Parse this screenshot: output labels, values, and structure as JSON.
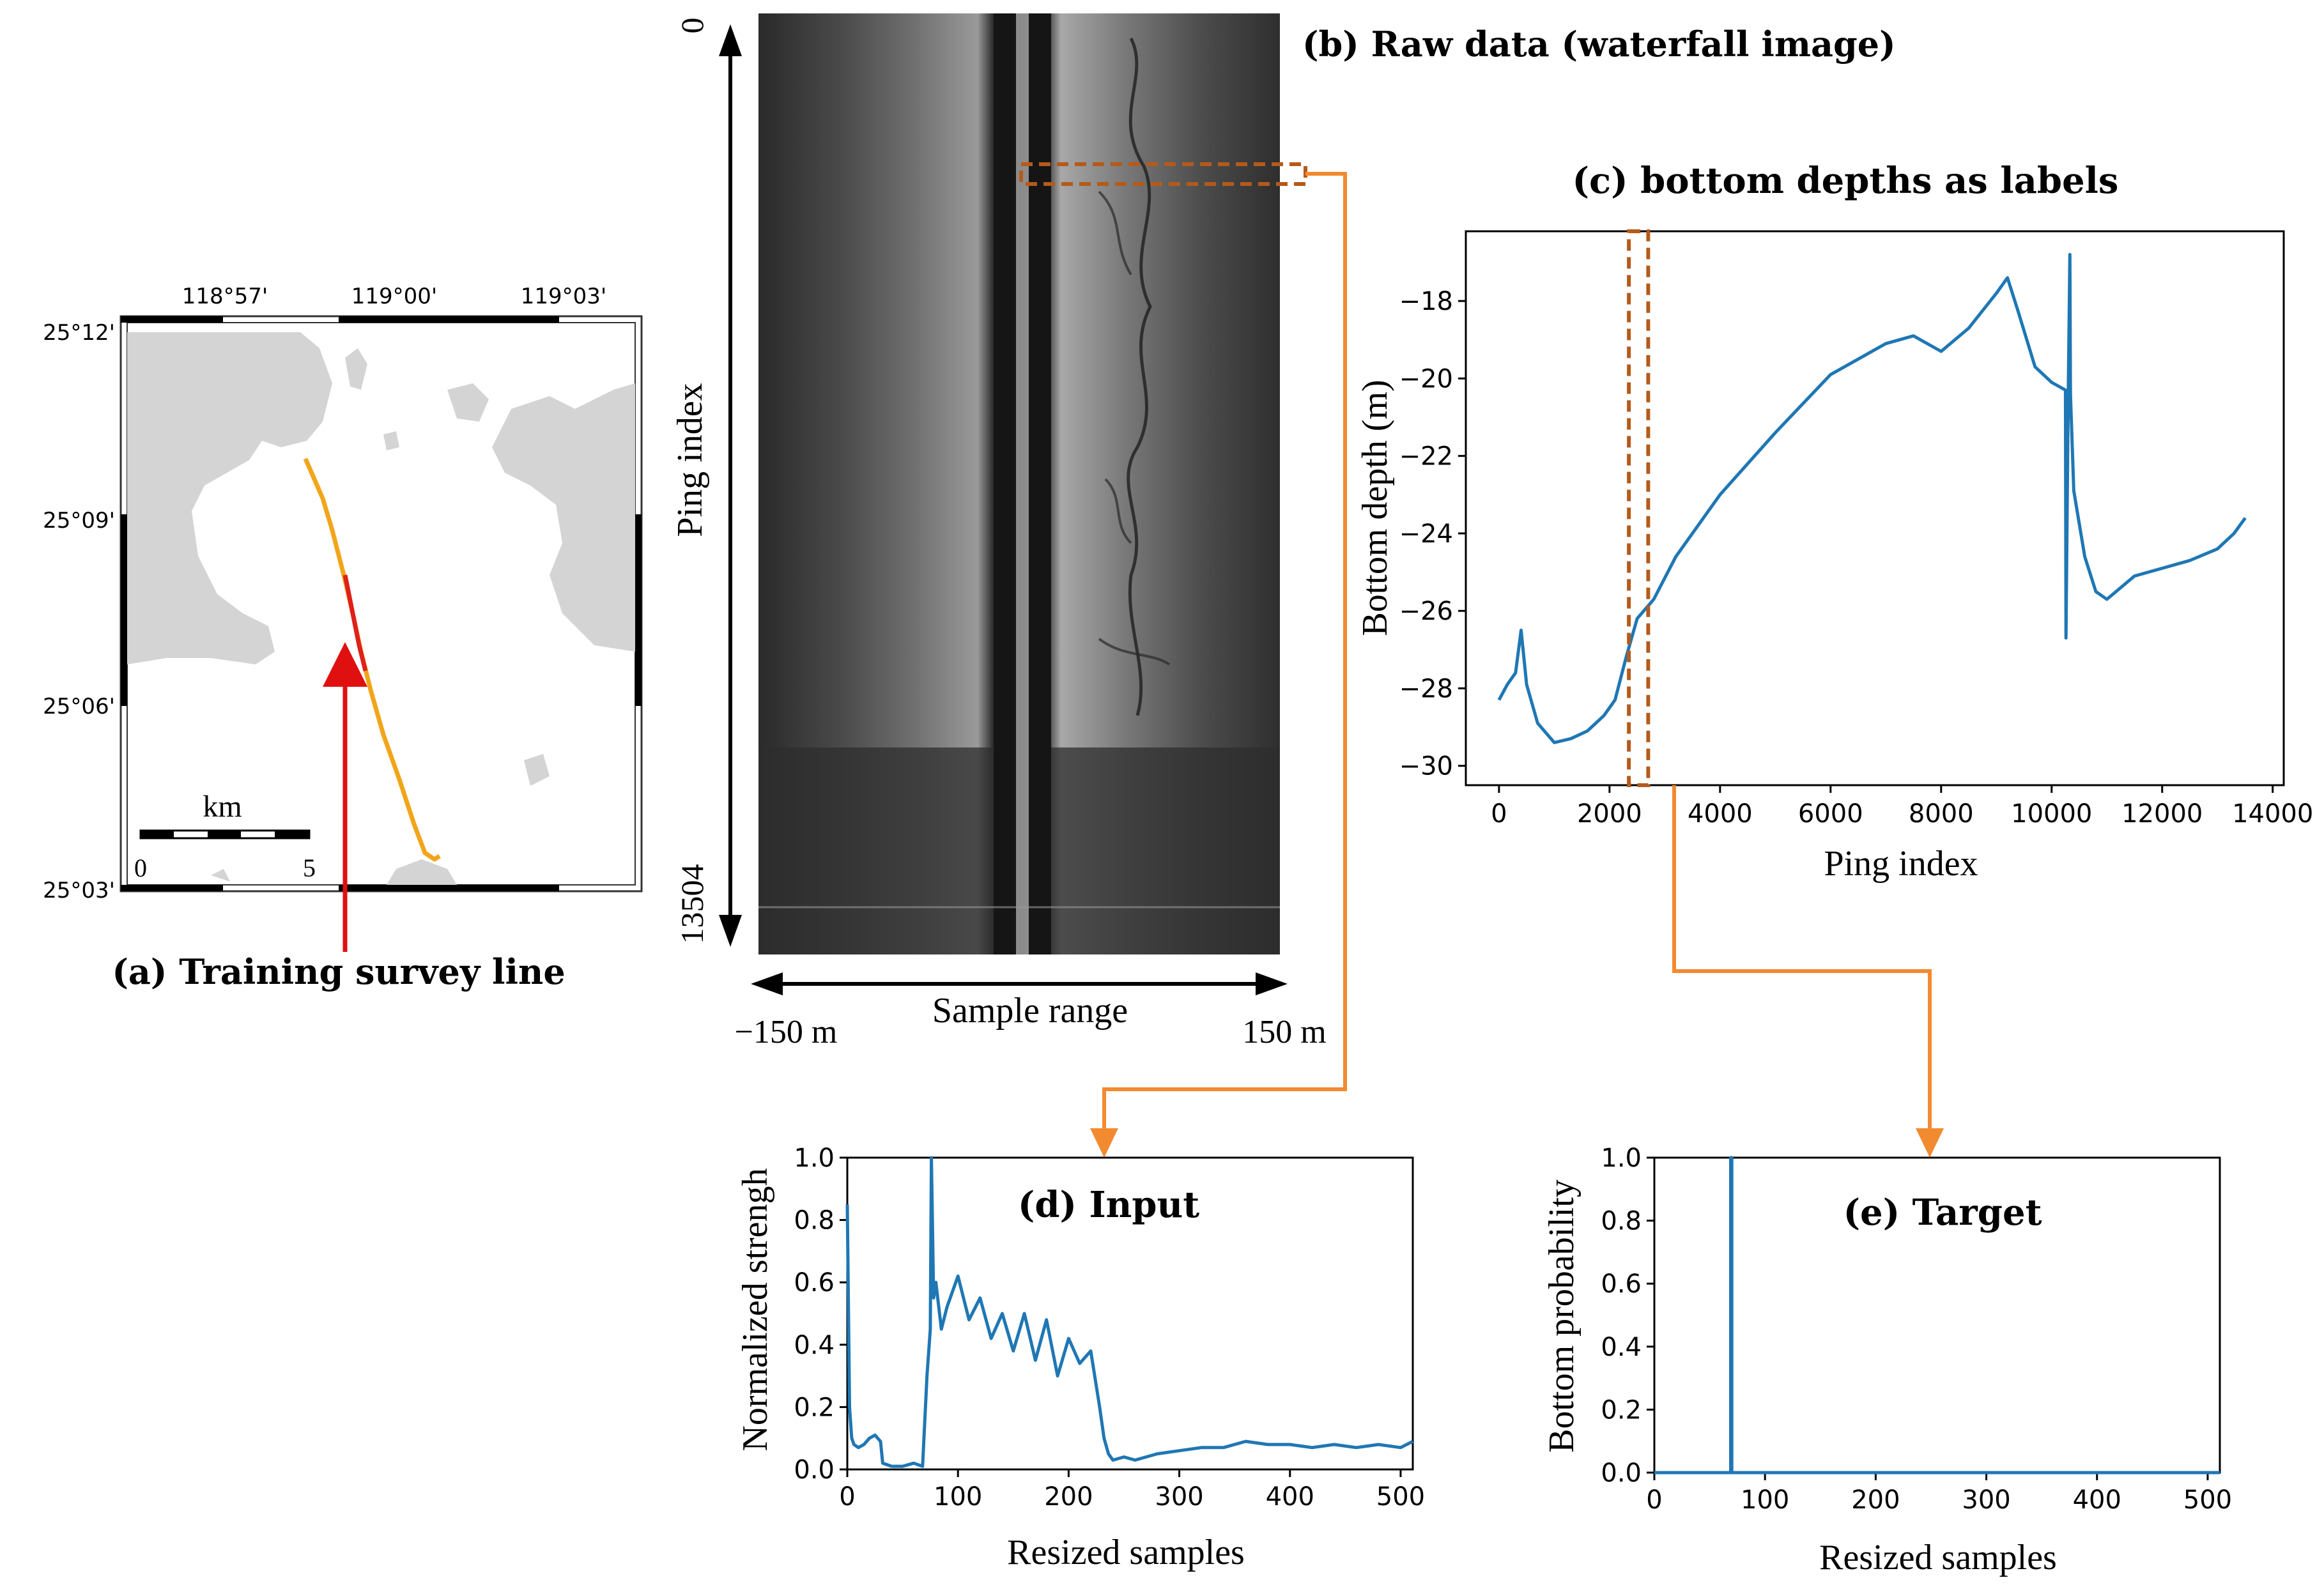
{
  "panel_a": {
    "caption": "(a) Training survey line",
    "lon_ticks": [
      "118°57'",
      "119°00'",
      "119°03'"
    ],
    "lat_ticks": [
      "25°12'",
      "25°09'",
      "25°06'",
      "25°03'"
    ],
    "scale_unit": "km",
    "scale_min": "0",
    "scale_max": "5",
    "colors": {
      "land": "#d4d4d4",
      "track": "#f2a51a",
      "track_segment": "#e0201b",
      "arrow": "#e01010"
    }
  },
  "panel_b": {
    "caption": "(b) Raw data (waterfall image)",
    "y_label": "Ping index",
    "y_top": "0",
    "y_bottom": "13504",
    "x_label": "Sample range",
    "x_left": "−150 m",
    "x_right": "150 m",
    "colors": {
      "highlight": "#b55a1a",
      "connector": "#f28a30"
    }
  },
  "chart_data": [
    {
      "id": "c",
      "type": "line",
      "title": "(c) bottom depths as labels",
      "xlabel": "Ping index",
      "ylabel": "Bottom depth (m)",
      "xlim": [
        -600,
        14200
      ],
      "ylim": [
        -30.5,
        -16.2
      ],
      "xticks": [
        0,
        2000,
        4000,
        6000,
        8000,
        10000,
        12000,
        14000
      ],
      "xticklabels": [
        "0",
        "2000",
        "4000",
        "6000",
        "8000",
        "10000",
        "12000",
        "14000"
      ],
      "yticks": [
        -30,
        -28,
        -26,
        -24,
        -22,
        -20,
        -18
      ],
      "yticklabels": [
        "−30",
        "−28",
        "−26",
        "−24",
        "−22",
        "−20",
        "−18"
      ],
      "highlight_x": [
        2350,
        2700
      ],
      "color": "#1f77b4",
      "series": [
        {
          "x": [
            0,
            150,
            300,
            400,
            500,
            700,
            1000,
            1300,
            1600,
            1900,
            2100,
            2300,
            2500,
            2800,
            3200,
            4000,
            5000,
            6000,
            7000,
            7500,
            8000,
            8500,
            9000,
            9200,
            9400,
            9700,
            10000,
            10250,
            10260,
            10300,
            10330,
            10340,
            10400,
            10600,
            10800,
            11000,
            11500,
            12000,
            12500,
            13000,
            13300,
            13504
          ],
          "y": [
            -28.3,
            -27.9,
            -27.6,
            -26.5,
            -27.9,
            -28.9,
            -29.4,
            -29.3,
            -29.1,
            -28.7,
            -28.3,
            -27.2,
            -26.2,
            -25.7,
            -24.6,
            -23.0,
            -21.4,
            -19.9,
            -19.1,
            -18.9,
            -19.3,
            -18.7,
            -17.8,
            -17.4,
            -18.3,
            -19.7,
            -20.1,
            -20.3,
            -26.7,
            -20.5,
            -16.8,
            -20.4,
            -22.9,
            -24.6,
            -25.5,
            -25.7,
            -25.1,
            -24.9,
            -24.7,
            -24.4,
            -24.0,
            -23.6
          ]
        }
      ]
    },
    {
      "id": "d",
      "type": "line",
      "title": "(d) Input",
      "xlabel": "Resized samples",
      "ylabel": "Normalized strengh",
      "xlim": [
        0,
        511
      ],
      "ylim": [
        0,
        1.0
      ],
      "xticks": [
        0,
        100,
        200,
        300,
        400,
        500
      ],
      "xticklabels": [
        "0",
        "100",
        "200",
        "300",
        "400",
        "500"
      ],
      "yticks": [
        0,
        0.2,
        0.4,
        0.6,
        0.8,
        1.0
      ],
      "yticklabels": [
        "0.0",
        "0.2",
        "0.4",
        "0.6",
        "0.8",
        "1.0"
      ],
      "color": "#1f77b4",
      "series": [
        {
          "x": [
            0,
            2,
            4,
            6,
            10,
            15,
            20,
            25,
            30,
            32,
            40,
            50,
            60,
            68,
            72,
            75,
            76,
            78,
            80,
            85,
            90,
            100,
            110,
            120,
            130,
            140,
            150,
            160,
            170,
            180,
            190,
            200,
            210,
            220,
            228,
            232,
            236,
            240,
            250,
            260,
            280,
            300,
            320,
            340,
            360,
            380,
            400,
            420,
            440,
            460,
            480,
            500,
            511
          ],
          "y": [
            0.85,
            0.2,
            0.1,
            0.08,
            0.07,
            0.08,
            0.1,
            0.11,
            0.09,
            0.02,
            0.01,
            0.01,
            0.02,
            0.01,
            0.3,
            0.45,
            1.0,
            0.55,
            0.6,
            0.45,
            0.52,
            0.62,
            0.48,
            0.55,
            0.42,
            0.5,
            0.38,
            0.5,
            0.35,
            0.48,
            0.3,
            0.42,
            0.34,
            0.38,
            0.2,
            0.1,
            0.05,
            0.03,
            0.04,
            0.03,
            0.05,
            0.06,
            0.07,
            0.07,
            0.09,
            0.08,
            0.08,
            0.07,
            0.08,
            0.07,
            0.08,
            0.07,
            0.09
          ]
        }
      ]
    },
    {
      "id": "e",
      "type": "line",
      "title": "(e) Target",
      "xlabel": "Resized samples",
      "ylabel": "Bottom probability",
      "xlim": [
        0,
        511
      ],
      "ylim": [
        0,
        1.0
      ],
      "xticks": [
        0,
        100,
        200,
        300,
        400,
        500
      ],
      "xticklabels": [
        "0",
        "100",
        "200",
        "300",
        "400",
        "500"
      ],
      "yticks": [
        0,
        0.2,
        0.4,
        0.6,
        0.8,
        1.0
      ],
      "yticklabels": [
        "0.0",
        "0.2",
        "0.4",
        "0.6",
        "0.8",
        "1.0"
      ],
      "color": "#1f77b4",
      "series": [
        {
          "x": [
            0,
            69,
            69,
            70,
            70,
            511
          ],
          "y": [
            0,
            0,
            1.0,
            1.0,
            0,
            0
          ]
        }
      ]
    }
  ]
}
